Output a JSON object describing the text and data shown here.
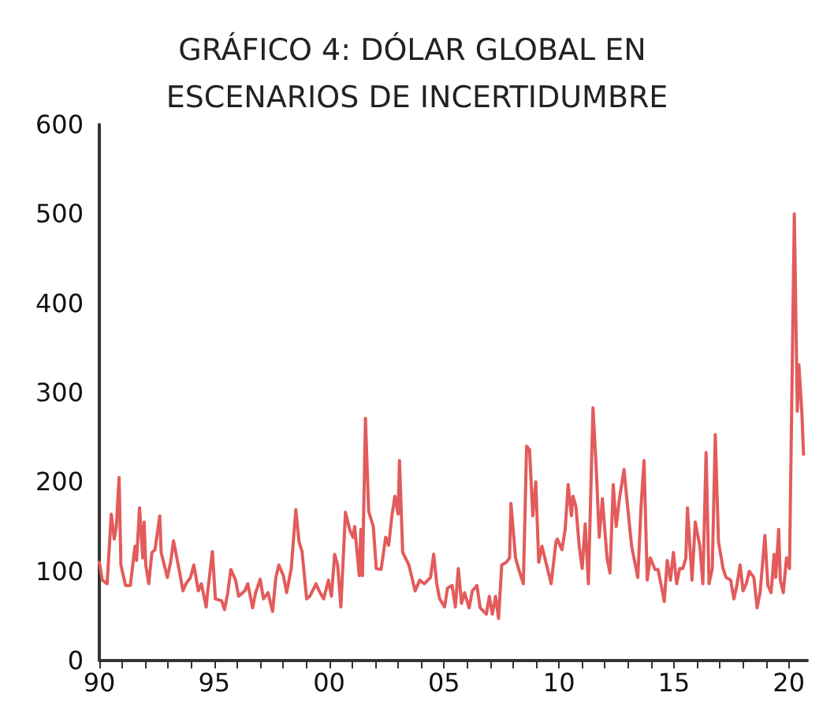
{
  "chart_data": {
    "type": "line",
    "title": "GRÁFICO 4: DÓLAR GLOBAL EN ESCENARIOS DE INCERTIDUMBRE",
    "x": [
      1990.0,
      1990.13,
      1990.34,
      1990.52,
      1990.65,
      1990.74,
      1990.86,
      1990.94,
      1991.14,
      1991.35,
      1991.55,
      1991.62,
      1991.75,
      1991.89,
      1991.95,
      1992.02,
      1992.15,
      1992.29,
      1992.42,
      1992.63,
      1992.69,
      1992.96,
      1993.1,
      1993.23,
      1993.37,
      1993.5,
      1993.64,
      1993.77,
      1993.97,
      1994.11,
      1994.31,
      1994.44,
      1994.65,
      1994.71,
      1994.92,
      1995.05,
      1995.32,
      1995.45,
      1995.59,
      1995.72,
      1995.93,
      1996.06,
      1996.33,
      1996.46,
      1996.67,
      1996.8,
      1997.0,
      1997.14,
      1997.34,
      1997.54,
      1997.68,
      1997.81,
      1998.01,
      1998.15,
      1998.35,
      1998.55,
      1998.69,
      1998.82,
      1999.02,
      1999.16,
      1999.43,
      1999.56,
      1999.76,
      1999.97,
      2000.1,
      2000.24,
      2000.37,
      2000.51,
      2000.71,
      2000.91,
      2001.04,
      2001.11,
      2001.31,
      2001.38,
      2001.45,
      2001.58,
      2001.72,
      2001.92,
      2002.05,
      2002.26,
      2002.46,
      2002.59,
      2002.73,
      2002.86,
      2003.0,
      2003.06,
      2003.2,
      2003.47,
      2003.6,
      2003.74,
      2003.94,
      2004.14,
      2004.41,
      2004.55,
      2004.68,
      2004.81,
      2005.02,
      2005.15,
      2005.35,
      2005.49,
      2005.62,
      2005.76,
      2005.89,
      2006.09,
      2006.23,
      2006.43,
      2006.57,
      2006.84,
      2006.97,
      2007.1,
      2007.24,
      2007.37,
      2007.51,
      2007.71,
      2007.85,
      2007.91,
      2008.11,
      2008.25,
      2008.45,
      2008.59,
      2008.72,
      2008.86,
      2008.99,
      2009.12,
      2009.26,
      2009.46,
      2009.66,
      2009.87,
      2009.93,
      2010.13,
      2010.27,
      2010.4,
      2010.54,
      2010.61,
      2010.74,
      2010.88,
      2011.01,
      2011.14,
      2011.28,
      2011.48,
      2011.62,
      2011.75,
      2011.89,
      2012.09,
      2012.22,
      2012.36,
      2012.49,
      2012.63,
      2012.83,
      2012.96,
      2013.16,
      2013.3,
      2013.43,
      2013.57,
      2013.7,
      2013.84,
      2013.97,
      2014.18,
      2014.31,
      2014.51,
      2014.58,
      2014.71,
      2014.85,
      2014.98,
      2015.12,
      2015.25,
      2015.39,
      2015.52,
      2015.59,
      2015.79,
      2015.93,
      2016.13,
      2016.26,
      2016.4,
      2016.53,
      2016.67,
      2016.8,
      2016.94,
      2017.14,
      2017.27,
      2017.47,
      2017.61,
      2017.74,
      2017.88,
      2018.01,
      2018.15,
      2018.28,
      2018.48,
      2018.62,
      2018.75,
      2018.96,
      2019.09,
      2019.23,
      2019.36,
      2019.43,
      2019.56,
      2019.63,
      2019.76,
      2019.9,
      2020.03,
      2020.24,
      2020.37,
      2020.44,
      2020.57,
      2020.64
    ],
    "series": [
      {
        "color": "#e35b5b",
        "values": [
          110,
          90,
          86,
          164,
          136,
          150,
          205,
          107,
          84,
          84,
          128,
          112,
          171,
          115,
          155,
          107,
          86,
          121,
          124,
          162,
          121,
          93,
          110,
          134,
          115,
          98,
          78,
          86,
          93,
          107,
          78,
          86,
          60,
          76,
          122,
          69,
          67,
          57,
          76,
          102,
          90,
          72,
          78,
          86,
          59,
          76,
          91,
          69,
          76,
          55,
          93,
          107,
          95,
          76,
          103,
          169,
          133,
          122,
          69,
          72,
          86,
          78,
          69,
          90,
          72,
          119,
          107,
          60,
          166,
          145,
          138,
          150,
          95,
          147,
          95,
          271,
          167,
          150,
          103,
          102,
          138,
          129,
          162,
          184,
          164,
          224,
          121,
          107,
          93,
          78,
          90,
          86,
          93,
          119,
          86,
          69,
          60,
          81,
          84,
          60,
          103,
          64,
          76,
          59,
          78,
          84,
          59,
          52,
          72,
          52,
          72,
          47,
          107,
          110,
          115,
          176,
          115,
          102,
          86,
          240,
          236,
          162,
          200,
          110,
          128,
          107,
          86,
          133,
          136,
          124,
          147,
          197,
          162,
          184,
          172,
          128,
          103,
          153,
          86,
          283,
          216,
          138,
          181,
          115,
          98,
          197,
          150,
          181,
          214,
          179,
          128,
          110,
          93,
          172,
          224,
          90,
          115,
          102,
          102,
          76,
          66,
          112,
          90,
          121,
          86,
          103,
          103,
          115,
          171,
          90,
          155,
          128,
          86,
          233,
          86,
          103,
          253,
          133,
          103,
          93,
          90,
          69,
          84,
          107,
          78,
          86,
          100,
          93,
          59,
          76,
          140,
          84,
          76,
          119,
          93,
          147,
          90,
          76,
          115,
          103,
          500,
          279,
          331,
          276,
          231
        ]
      }
    ],
    "xlim": [
      1990,
      2020.8
    ],
    "xticks": [
      {
        "value": 1990,
        "label": "90"
      },
      {
        "value": 1991,
        "label": null
      },
      {
        "value": 1992,
        "label": null
      },
      {
        "value": 1993,
        "label": null
      },
      {
        "value": 1994,
        "label": null
      },
      {
        "value": 1995,
        "label": "95"
      },
      {
        "value": 1996,
        "label": null
      },
      {
        "value": 1997,
        "label": null
      },
      {
        "value": 1998,
        "label": null
      },
      {
        "value": 1999,
        "label": null
      },
      {
        "value": 2000,
        "label": "00"
      },
      {
        "value": 2001,
        "label": null
      },
      {
        "value": 2002,
        "label": null
      },
      {
        "value": 2003,
        "label": null
      },
      {
        "value": 2004,
        "label": null
      },
      {
        "value": 2005,
        "label": "05"
      },
      {
        "value": 2006,
        "label": null
      },
      {
        "value": 2007,
        "label": null
      },
      {
        "value": 2008,
        "label": null
      },
      {
        "value": 2009,
        "label": null
      },
      {
        "value": 2010,
        "label": "10"
      },
      {
        "value": 2011,
        "label": null
      },
      {
        "value": 2012,
        "label": null
      },
      {
        "value": 2013,
        "label": null
      },
      {
        "value": 2014,
        "label": null
      },
      {
        "value": 2015,
        "label": "15"
      },
      {
        "value": 2016,
        "label": null
      },
      {
        "value": 2017,
        "label": null
      },
      {
        "value": 2018,
        "label": null
      },
      {
        "value": 2019,
        "label": null
      },
      {
        "value": 2020,
        "label": "20"
      }
    ],
    "ylim": [
      0,
      600
    ],
    "yticks": [
      0,
      100,
      200,
      300,
      400,
      500,
      600
    ],
    "grid": false,
    "marker": "none",
    "line_style": "solid"
  }
}
